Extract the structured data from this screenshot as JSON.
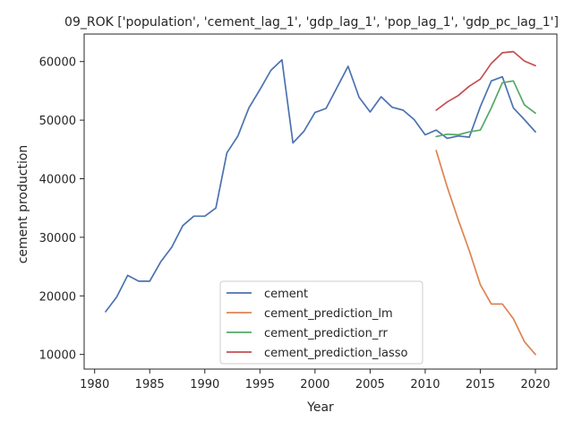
{
  "chart_data": {
    "type": "line",
    "title": "09_ROK ['population', 'cement_lag_1', 'gdp_lag_1', 'pop_lag_1', 'gdp_pc_lag_1']",
    "xlabel": "Year",
    "ylabel": "cement production",
    "xlim": [
      1979.05,
      2021.95
    ],
    "ylim": [
      7500,
      64700
    ],
    "xticks": [
      1980,
      1985,
      1990,
      1995,
      2000,
      2005,
      2010,
      2015,
      2020
    ],
    "yticks": [
      10000,
      20000,
      30000,
      40000,
      50000,
      60000
    ],
    "grid": false,
    "legend_position": "lower-center",
    "series": [
      {
        "name": "cement",
        "color": "#4c72b0",
        "x": [
          1981,
          1982,
          1983,
          1984,
          1985,
          1986,
          1987,
          1988,
          1989,
          1990,
          1991,
          1992,
          1993,
          1994,
          1995,
          1996,
          1997,
          1998,
          1999,
          2000,
          2001,
          2002,
          2003,
          2004,
          2005,
          2006,
          2007,
          2008,
          2009,
          2010,
          2011,
          2012,
          2013,
          2014,
          2015,
          2016,
          2017,
          2018,
          2019,
          2020
        ],
        "values": [
          17300,
          19800,
          23500,
          22500,
          22500,
          25800,
          28300,
          32000,
          33600,
          33600,
          35000,
          44400,
          47300,
          52100,
          55200,
          58500,
          60300,
          46100,
          48100,
          51300,
          52000,
          55600,
          59200,
          53900,
          51400,
          54000,
          52200,
          51700,
          50100,
          47500,
          48300,
          46900,
          47300,
          47100,
          52300,
          56700,
          57400,
          52100,
          50100,
          48000
        ]
      },
      {
        "name": "cement_prediction_lm",
        "color": "#dd8452",
        "x": [
          2011,
          2012,
          2013,
          2014,
          2015,
          2016,
          2017,
          2018,
          2019,
          2020
        ],
        "values": [
          44800,
          38600,
          33000,
          27700,
          21900,
          18600,
          18600,
          16100,
          12200,
          10000
        ]
      },
      {
        "name": "cement_prediction_rr",
        "color": "#55a868",
        "x": [
          2011,
          2012,
          2013,
          2014,
          2015,
          2016,
          2017,
          2018,
          2019,
          2020
        ],
        "values": [
          47200,
          47600,
          47500,
          48000,
          48300,
          52100,
          56400,
          56700,
          52600,
          51200
        ]
      },
      {
        "name": "cement_prediction_lasso",
        "color": "#c44e52",
        "x": [
          2011,
          2012,
          2013,
          2014,
          2015,
          2016,
          2017,
          2018,
          2019,
          2020
        ],
        "values": [
          51700,
          53100,
          54200,
          55800,
          57000,
          59700,
          61500,
          61700,
          60100,
          59300
        ]
      }
    ]
  }
}
